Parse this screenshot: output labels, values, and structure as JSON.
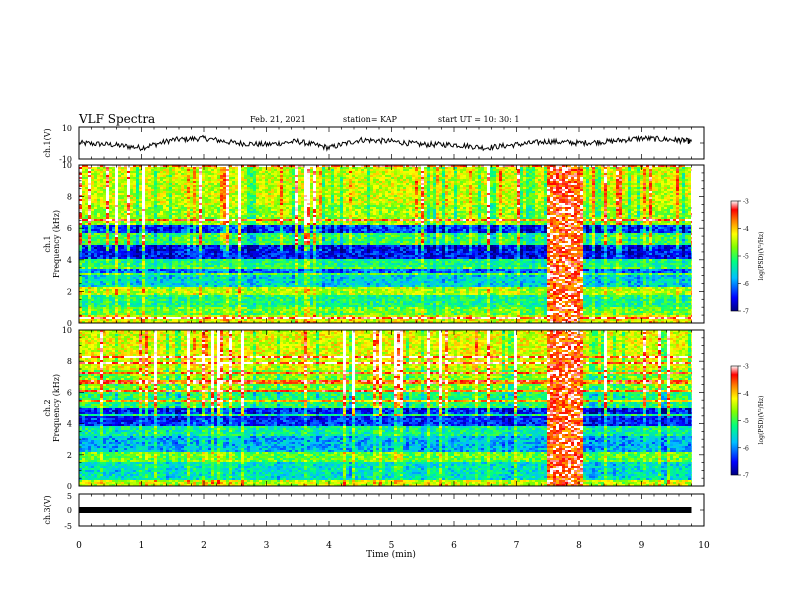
{
  "header": {
    "title": "VLF Spectra",
    "date": "Feb. 21, 2021",
    "station": "station= KAP",
    "start_time": "start  UT =   10: 30: 1"
  },
  "x_axis": {
    "label": "Time (min)",
    "range": [
      0,
      10
    ],
    "ticks": [
      "0",
      "1",
      "2",
      "3",
      "4",
      "5",
      "6",
      "7",
      "8",
      "9",
      "10"
    ]
  },
  "chart_data": [
    {
      "type": "line",
      "ylabel": "ch.1(V)",
      "xlim": [
        0,
        10
      ],
      "ylim": [
        -10,
        10
      ],
      "y_ticks": [
        "10",
        "-10"
      ],
      "series": [
        {
          "x": [
            0,
            0.5,
            1,
            1.5,
            2,
            2.5,
            3,
            3.5,
            4,
            4.5,
            5,
            5.5,
            6,
            6.5,
            7,
            7.5,
            8,
            8.5,
            9,
            9.5,
            9.8
          ],
          "values": [
            0,
            -1,
            -3,
            2,
            3,
            0,
            -1,
            1,
            -3,
            2,
            1,
            -1,
            -1,
            -3,
            -1,
            1,
            0,
            1,
            3,
            2,
            1
          ]
        }
      ]
    },
    {
      "type": "heatmap",
      "ylabel_1": "ch.1",
      "ylabel_2": "Frequency (kHz)",
      "xlim": [
        0,
        10
      ],
      "ylim": [
        0,
        10
      ],
      "y_ticks": [
        "0",
        "2",
        "4",
        "6",
        "8",
        "10"
      ],
      "data_end_min": 9.8,
      "band_levels": [
        {
          "f": [
            0,
            0.5
          ],
          "level": -4.3
        },
        {
          "f": [
            0.5,
            1.0
          ],
          "level": -4.8
        },
        {
          "f": [
            1.0,
            1.8
          ],
          "level": -5.2
        },
        {
          "f": [
            1.8,
            2.3
          ],
          "level": -4.5
        },
        {
          "f": [
            2.3,
            3.0
          ],
          "level": -5.6
        },
        {
          "f": [
            3.0,
            3.6
          ],
          "level": -6.1
        },
        {
          "f": [
            3.6,
            4.0
          ],
          "level": -5.2
        },
        {
          "f": [
            4.0,
            5.0
          ],
          "level": -6.5
        },
        {
          "f": [
            5.0,
            5.7
          ],
          "level": -5.0
        },
        {
          "f": [
            5.7,
            6.2
          ],
          "level": -6.3
        },
        {
          "f": [
            6.2,
            7.5
          ],
          "level": -4.6
        },
        {
          "f": [
            7.5,
            10
          ],
          "level": -4.4
        }
      ],
      "burst": {
        "x": [
          7.45,
          8.05
        ],
        "level": -3.4
      }
    },
    {
      "type": "heatmap",
      "ylabel_1": "ch.2",
      "ylabel_2": "Frequency (kHz)",
      "xlim": [
        0,
        10
      ],
      "ylim": [
        0,
        10
      ],
      "y_ticks": [
        "0",
        "2",
        "4",
        "6",
        "8",
        "10"
      ],
      "data_end_min": 9.8,
      "band_levels": [
        {
          "f": [
            0,
            0.4
          ],
          "level": -4.4
        },
        {
          "f": [
            0.4,
            1.5
          ],
          "level": -5.5
        },
        {
          "f": [
            1.5,
            2.2
          ],
          "level": -4.8
        },
        {
          "f": [
            2.2,
            3.2
          ],
          "level": -5.8
        },
        {
          "f": [
            3.2,
            3.8
          ],
          "level": -5.3
        },
        {
          "f": [
            3.8,
            5.0
          ],
          "level": -6.4
        },
        {
          "f": [
            5.0,
            6.0
          ],
          "level": -5.1
        },
        {
          "f": [
            6.0,
            7.5
          ],
          "level": -4.7
        },
        {
          "f": [
            7.5,
            10
          ],
          "level": -4.3
        }
      ],
      "burst": {
        "x": [
          7.45,
          8.05
        ],
        "level": -3.4
      }
    },
    {
      "type": "line",
      "ylabel": "ch.3(V)",
      "xlim": [
        0,
        10
      ],
      "ylim": [
        -5,
        5
      ],
      "y_ticks": [
        "5",
        "0",
        "-5"
      ],
      "series": [
        {
          "x": [
            0,
            9.8
          ],
          "values": [
            0,
            0
          ]
        }
      ]
    }
  ],
  "colorbars": [
    {
      "label": "log(PSD)(V²/Hz)",
      "range": [
        -7,
        -3
      ],
      "ticks": [
        "-3",
        "-4",
        "-5",
        "-6",
        "-7"
      ]
    },
    {
      "label": "log(PSD)(V²/Hz)",
      "range": [
        -7,
        -3
      ],
      "ticks": [
        "-3",
        "-4",
        "-5",
        "-6",
        "-7"
      ]
    }
  ],
  "colors": {
    "frame": "#000000",
    "trace": "#000000"
  }
}
